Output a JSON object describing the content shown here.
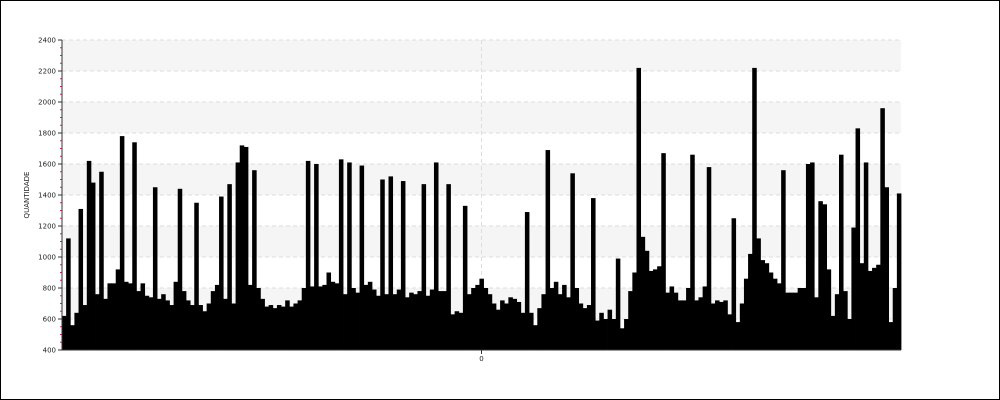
{
  "chart_data": {
    "type": "bar",
    "title": "",
    "xlabel": "",
    "ylabel": "QUANTIDADE",
    "ylim": [
      400,
      2400
    ],
    "yticks": [
      400,
      600,
      800,
      1000,
      1200,
      1400,
      1600,
      1800,
      2000,
      2200,
      2400
    ],
    "xtick_label": "0",
    "grid": true,
    "legend": "none",
    "colors": {
      "bar": "#000000",
      "band": "#f5f5f5",
      "grid": "#dddddd",
      "minor_tick": "#cc3366"
    },
    "values": [
      620,
      1120,
      560,
      640,
      1310,
      690,
      1620,
      1480,
      760,
      1550,
      730,
      830,
      830,
      920,
      1780,
      840,
      830,
      1740,
      780,
      830,
      750,
      740,
      1450,
      730,
      760,
      720,
      690,
      840,
      1440,
      780,
      720,
      690,
      1350,
      690,
      650,
      700,
      780,
      820,
      1390,
      730,
      1470,
      700,
      1610,
      1720,
      1710,
      820,
      1560,
      800,
      730,
      680,
      690,
      670,
      690,
      680,
      720,
      680,
      700,
      720,
      800,
      1620,
      810,
      1600,
      810,
      820,
      900,
      840,
      830,
      1630,
      760,
      1610,
      800,
      770,
      1590,
      820,
      840,
      790,
      750,
      1500,
      760,
      1520,
      760,
      790,
      1490,
      740,
      770,
      760,
      780,
      1470,
      750,
      790,
      1610,
      780,
      780,
      1470,
      630,
      650,
      640,
      1330,
      760,
      800,
      820,
      860,
      800,
      760,
      700,
      660,
      720,
      700,
      740,
      730,
      710,
      640,
      1290,
      640,
      560,
      670,
      760,
      1690,
      800,
      840,
      760,
      820,
      740,
      1540,
      800,
      700,
      670,
      690,
      1380,
      590,
      640,
      600,
      660,
      600,
      990,
      540,
      600,
      780,
      900,
      2220,
      1130,
      1040,
      910,
      920,
      940,
      1670,
      770,
      810,
      770,
      720,
      720,
      800,
      1660,
      720,
      740,
      810,
      1580,
      700,
      720,
      710,
      720,
      630,
      1250,
      580,
      700,
      860,
      1020,
      2220,
      1120,
      980,
      960,
      900,
      860,
      830,
      1560,
      770,
      770,
      770,
      800,
      800,
      1600,
      1610,
      740,
      1360,
      1340,
      920,
      620,
      760,
      1660,
      780,
      600,
      1190,
      1830,
      960,
      1610,
      910,
      930,
      950,
      1960,
      1450,
      580,
      800,
      1410
    ]
  }
}
